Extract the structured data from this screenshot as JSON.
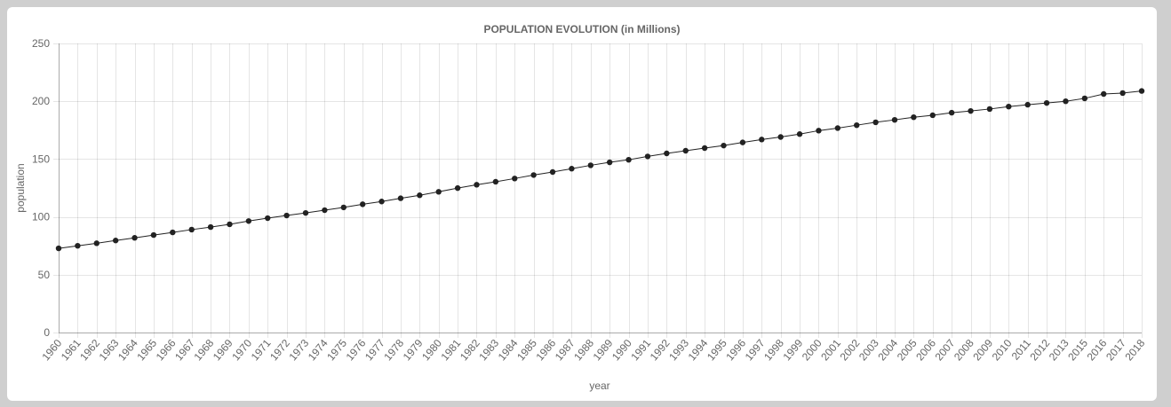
{
  "chart_data": {
    "type": "line",
    "title": "POPULATION EVOLUTION (in Millions)",
    "xlabel": "year",
    "ylabel": "population",
    "ylim": [
      0,
      250
    ],
    "yticks": [
      0,
      50,
      100,
      150,
      200,
      250
    ],
    "grid": true,
    "legend": "none",
    "series_color": "#222222",
    "categories": [
      "1960",
      "1961",
      "1962",
      "1963",
      "1964",
      "1965",
      "1966",
      "1967",
      "1968",
      "1969",
      "1970",
      "1971",
      "1972",
      "1973",
      "1974",
      "1975",
      "1976",
      "1977",
      "1978",
      "1979",
      "1980",
      "1981",
      "1982",
      "1983",
      "1984",
      "1985",
      "1986",
      "1987",
      "1988",
      "1989",
      "1990",
      "1991",
      "1992",
      "1993",
      "1994",
      "1995",
      "1996",
      "1997",
      "1998",
      "1999",
      "2000",
      "2001",
      "2002",
      "2003",
      "2004",
      "2005",
      "2006",
      "2007",
      "2008",
      "2009",
      "2010",
      "2011",
      "2012",
      "2013",
      "2015",
      "2016",
      "2017",
      "2018"
    ],
    "values": [
      72.8,
      75.0,
      77.2,
      79.6,
      81.9,
      84.3,
      86.6,
      89.0,
      91.2,
      93.6,
      96.4,
      98.9,
      101.2,
      103.4,
      105.8,
      108.2,
      110.9,
      113.3,
      116.1,
      118.7,
      121.7,
      124.9,
      127.8,
      130.4,
      133.2,
      136.2,
      138.8,
      141.7,
      144.6,
      147.2,
      149.4,
      152.3,
      154.9,
      157.2,
      159.5,
      161.7,
      164.4,
      166.9,
      169.1,
      171.6,
      174.6,
      176.8,
      179.3,
      181.8,
      183.9,
      186.2,
      187.9,
      190.1,
      191.6,
      193.3,
      195.4,
      197.0,
      198.5,
      200.0,
      202.5,
      206.3,
      207.1,
      208.9
    ]
  }
}
